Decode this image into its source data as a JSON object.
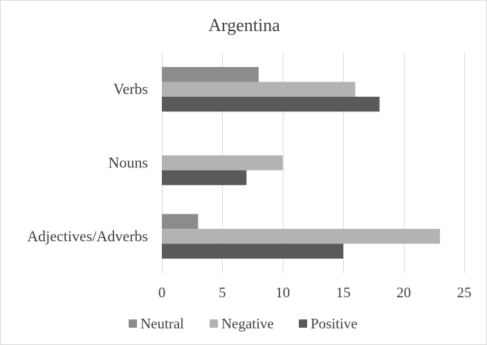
{
  "chart_data": {
    "type": "bar",
    "orientation": "horizontal",
    "title": "Argentina",
    "xlabel": "",
    "ylabel": "",
    "categories": [
      "Verbs",
      "Nouns",
      "Adjectives/Adverbs"
    ],
    "series": [
      {
        "name": "Neutral",
        "values": [
          8,
          0,
          3
        ],
        "color": "#8c8c8c"
      },
      {
        "name": "Negative",
        "values": [
          16,
          10,
          23
        ],
        "color": "#b3b3b3"
      },
      {
        "name": "Positive",
        "values": [
          18,
          7,
          15
        ],
        "color": "#5a5a5a"
      }
    ],
    "xlim": [
      0,
      25
    ],
    "xticks": [
      0,
      5,
      10,
      15,
      20,
      25
    ],
    "grid": "vertical",
    "legend_position": "bottom"
  }
}
